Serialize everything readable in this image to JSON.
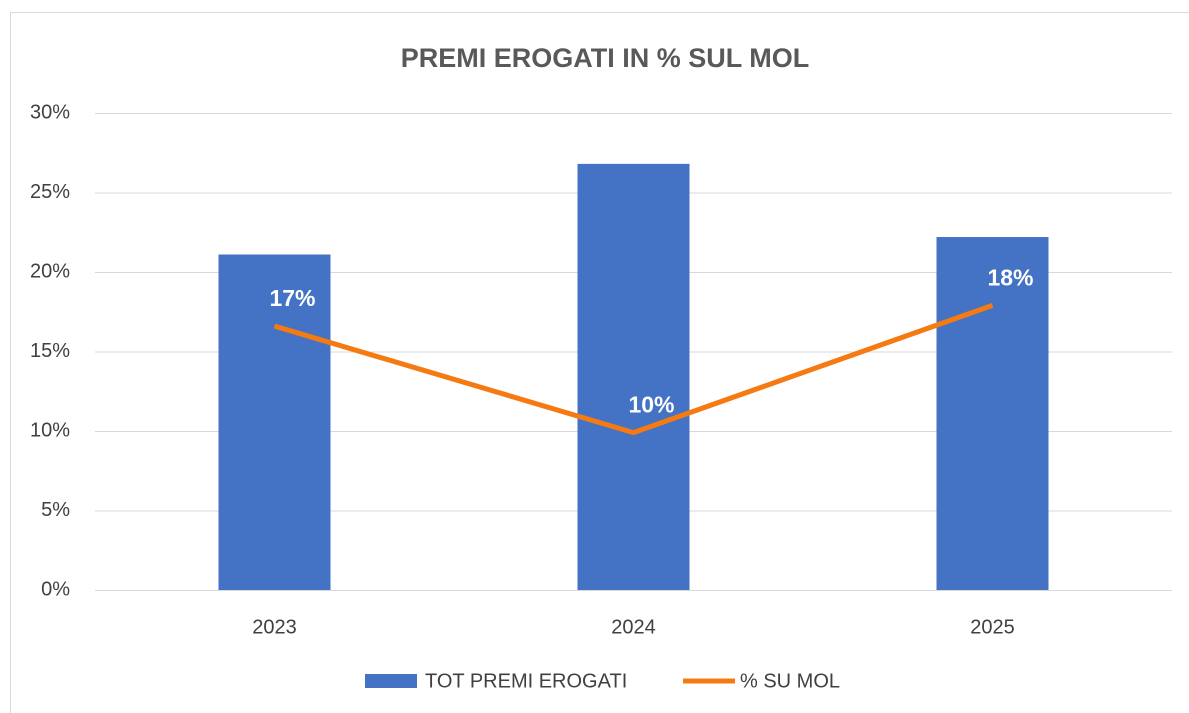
{
  "chart_data": {
    "type": "bar_line",
    "title": "PREMI EROGATI IN % SUL MOL",
    "categories": [
      "2023",
      "2024",
      "2025"
    ],
    "series": [
      {
        "name": "TOT PREMI EROGATI",
        "type": "bar",
        "color": "#4472c4",
        "values": [
          21.1,
          26.8,
          22.2
        ]
      },
      {
        "name": "% SU MOL",
        "type": "line",
        "color": "#f57a12",
        "values": [
          16.6,
          9.9,
          17.9
        ],
        "value_labels": [
          "17%",
          "10%",
          "18%"
        ]
      }
    ],
    "ylim": [
      0,
      30
    ],
    "yticks": [
      {
        "value": 0,
        "label": "0%"
      },
      {
        "value": 5,
        "label": "5%"
      },
      {
        "value": 10,
        "label": "10%"
      },
      {
        "value": 15,
        "label": "15%"
      },
      {
        "value": 20,
        "label": "20%"
      },
      {
        "value": 25,
        "label": "25%"
      },
      {
        "value": 30,
        "label": "30%"
      }
    ],
    "grid": true,
    "legend": "bottom"
  }
}
